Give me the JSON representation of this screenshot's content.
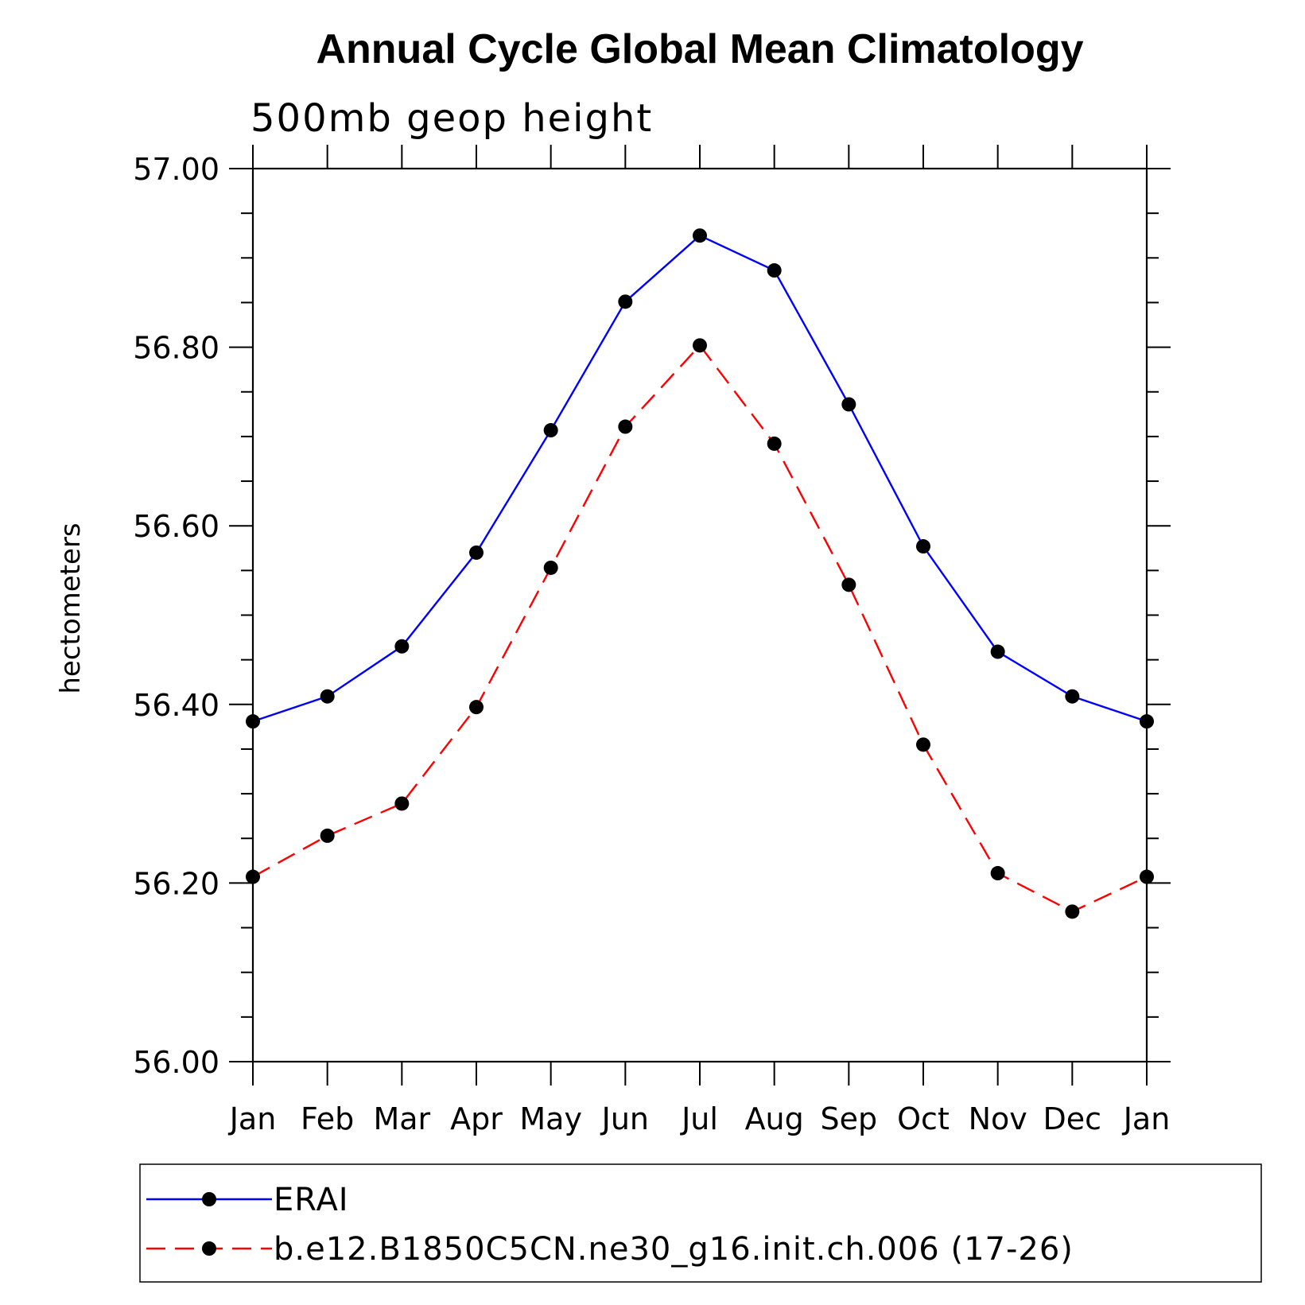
{
  "chart_data": {
    "type": "line",
    "title": "Annual Cycle Global Mean Climatology",
    "subtitle": "500mb geop height",
    "xlabel": "",
    "ylabel": "hectometers",
    "categories": [
      "Jan",
      "Feb",
      "Mar",
      "Apr",
      "May",
      "Jun",
      "Jul",
      "Aug",
      "Sep",
      "Oct",
      "Nov",
      "Dec",
      "Jan"
    ],
    "ylim": [
      56.0,
      57.0
    ],
    "ytick_labels": [
      "56.00",
      "56.20",
      "56.40",
      "56.60",
      "56.80",
      "57.00"
    ],
    "ytick_values": [
      56.0,
      56.2,
      56.4,
      56.6,
      56.8,
      57.0
    ],
    "yminor_step": 0.05,
    "grid": false,
    "legend_position": "bottom",
    "series": [
      {
        "name": "ERAI",
        "color": "#0000ff",
        "style": "solid",
        "marker": "circle",
        "values": [
          56.381,
          56.409,
          56.465,
          56.57,
          56.707,
          56.851,
          56.925,
          56.886,
          56.736,
          56.577,
          56.459,
          56.409,
          56.381
        ]
      },
      {
        "name": "b.e12.B1850C5CN.ne30_g16.init.ch.006 (17-26)",
        "color": "#ff0000",
        "style": "dashed",
        "marker": "circle",
        "values": [
          56.207,
          56.253,
          56.289,
          56.397,
          56.553,
          56.711,
          56.802,
          56.692,
          56.534,
          56.355,
          56.211,
          56.168,
          56.207
        ]
      }
    ]
  }
}
